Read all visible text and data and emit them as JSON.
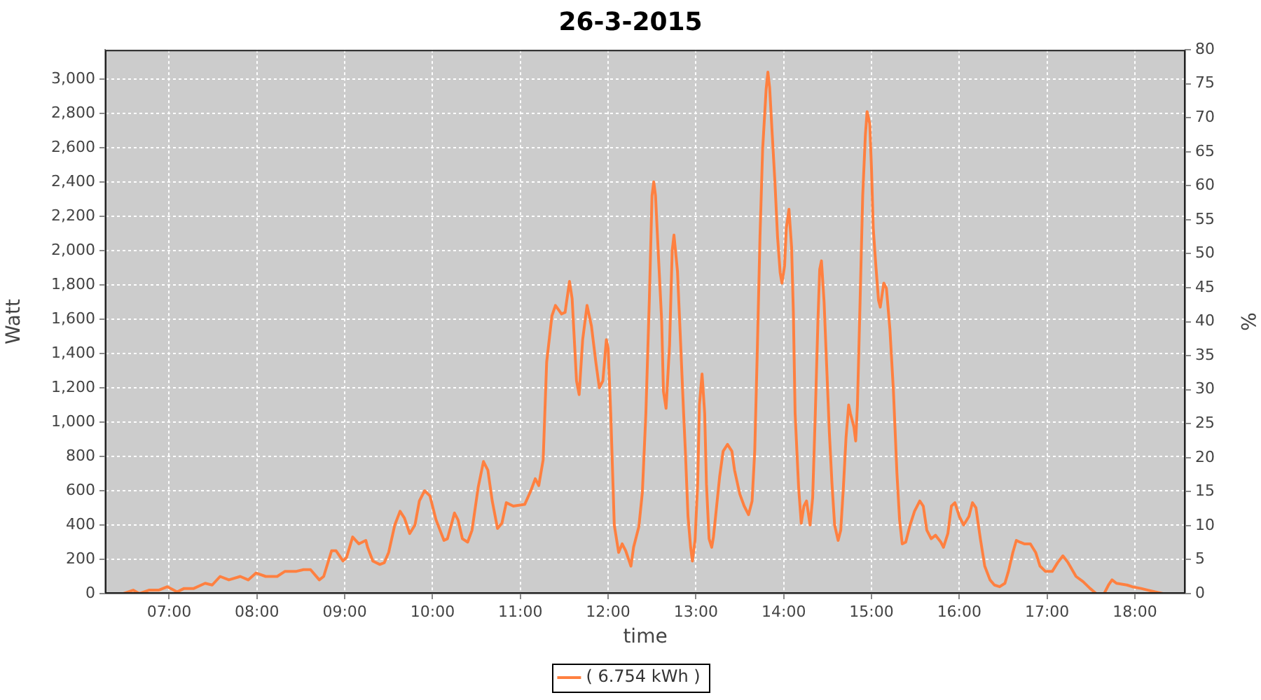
{
  "chart_data": {
    "type": "line",
    "title": "26-3-2015",
    "xlabel": "time",
    "ylabel": "Watt",
    "y2label": "%",
    "x": [
      6.48,
      6.59,
      6.66,
      6.77,
      6.88,
      6.98,
      7.09,
      7.17,
      7.28,
      7.41,
      7.49,
      7.58,
      7.68,
      7.81,
      7.9,
      7.99,
      8.1,
      8.23,
      8.32,
      8.45,
      8.53,
      8.61,
      8.71,
      8.76,
      8.85,
      8.9,
      8.98,
      9.02,
      9.09,
      9.16,
      9.24,
      9.26,
      9.32,
      9.4,
      9.45,
      9.5,
      9.57,
      9.63,
      9.68,
      9.74,
      9.8,
      9.85,
      9.91,
      9.97,
      10.04,
      10.13,
      10.17,
      10.25,
      10.29,
      10.34,
      10.4,
      10.45,
      10.52,
      10.58,
      10.63,
      10.68,
      10.74,
      10.79,
      10.84,
      10.92,
      11.05,
      11.12,
      11.17,
      11.21,
      11.26,
      11.3,
      11.36,
      11.4,
      11.47,
      11.51,
      11.56,
      11.59,
      11.64,
      11.67,
      11.71,
      11.76,
      11.81,
      11.86,
      11.9,
      11.94,
      11.98,
      12.0,
      12.03,
      12.07,
      12.12,
      12.16,
      12.2,
      12.26,
      12.29,
      12.35,
      12.39,
      12.43,
      12.47,
      12.5,
      12.52,
      12.54,
      12.57,
      12.61,
      12.63,
      12.66,
      12.7,
      12.73,
      12.75,
      12.79,
      12.82,
      12.86,
      12.88,
      12.91,
      12.94,
      12.96,
      12.99,
      13.02,
      13.04,
      13.07,
      13.1,
      13.12,
      13.15,
      13.18,
      13.2,
      13.23,
      13.27,
      13.31,
      13.36,
      13.41,
      13.44,
      13.5,
      13.55,
      13.6,
      13.64,
      13.67,
      13.7,
      13.73,
      13.76,
      13.8,
      13.82,
      13.84,
      13.87,
      13.9,
      13.93,
      13.96,
      13.98,
      14.01,
      14.03,
      14.06,
      14.09,
      14.11,
      14.13,
      14.17,
      14.2,
      14.23,
      14.26,
      14.3,
      14.33,
      14.36,
      14.39,
      14.41,
      14.43,
      14.46,
      14.49,
      14.52,
      14.55,
      14.58,
      14.62,
      14.65,
      14.68,
      14.71,
      14.74,
      14.76,
      14.8,
      14.82,
      14.84,
      14.87,
      14.9,
      14.93,
      14.95,
      14.98,
      15.0,
      15.02,
      15.05,
      15.08,
      15.1,
      15.14,
      15.17,
      15.21,
      15.25,
      15.29,
      15.32,
      15.35,
      15.39,
      15.44,
      15.49,
      15.55,
      15.59,
      15.63,
      15.68,
      15.73,
      15.79,
      15.82,
      15.87,
      15.91,
      15.95,
      16.0,
      16.05,
      16.11,
      16.15,
      16.19,
      16.24,
      16.29,
      16.35,
      16.4,
      16.46,
      16.52,
      16.56,
      16.61,
      16.65,
      16.69,
      16.74,
      16.81,
      16.87,
      16.92,
      16.98,
      17.06,
      17.12,
      17.18,
      17.24,
      17.33,
      17.41,
      17.49,
      17.56,
      17.65,
      17.7,
      17.74,
      17.79,
      17.91,
      17.97,
      18.07,
      18.15,
      18.23,
      18.32
    ],
    "series": [
      {
        "name": "( 6.754 kWh )",
        "color": "#ff8040",
        "values": [
          0,
          20,
          0,
          20,
          20,
          40,
          10,
          30,
          30,
          60,
          50,
          100,
          80,
          100,
          80,
          120,
          100,
          100,
          130,
          130,
          140,
          140,
          80,
          100,
          250,
          250,
          190,
          210,
          330,
          290,
          310,
          270,
          190,
          170,
          180,
          240,
          400,
          480,
          440,
          350,
          400,
          540,
          600,
          570,
          430,
          310,
          320,
          470,
          430,
          320,
          300,
          370,
          620,
          770,
          720,
          540,
          380,
          410,
          530,
          510,
          520,
          600,
          670,
          630,
          780,
          1350,
          1620,
          1680,
          1630,
          1640,
          1820,
          1720,
          1240,
          1160,
          1480,
          1680,
          1560,
          1350,
          1200,
          1240,
          1480,
          1430,
          1050,
          400,
          240,
          290,
          250,
          160,
          270,
          390,
          590,
          1050,
          1720,
          2320,
          2400,
          2320,
          2000,
          1590,
          1180,
          1080,
          1450,
          2000,
          2090,
          1880,
          1530,
          1050,
          830,
          450,
          270,
          190,
          310,
          640,
          1100,
          1280,
          1050,
          640,
          320,
          270,
          330,
          480,
          680,
          830,
          870,
          830,
          720,
          580,
          510,
          460,
          540,
          830,
          1430,
          2080,
          2590,
          2940,
          3040,
          2950,
          2670,
          2400,
          2080,
          1870,
          1810,
          1910,
          2130,
          2240,
          2020,
          1640,
          1050,
          620,
          410,
          510,
          540,
          400,
          560,
          1050,
          1590,
          1890,
          1940,
          1700,
          1320,
          940,
          640,
          400,
          310,
          370,
          620,
          910,
          1100,
          1050,
          970,
          890,
          1100,
          1700,
          2320,
          2670,
          2810,
          2740,
          2480,
          2130,
          1910,
          1710,
          1670,
          1810,
          1780,
          1540,
          1180,
          700,
          430,
          290,
          300,
          400,
          480,
          540,
          510,
          370,
          320,
          340,
          300,
          270,
          350,
          510,
          530,
          450,
          400,
          450,
          530,
          500,
          320,
          160,
          80,
          50,
          40,
          60,
          130,
          240,
          310,
          300,
          290,
          290,
          240,
          160,
          130,
          130,
          180,
          220,
          180,
          100,
          70,
          30,
          0,
          0,
          50,
          80,
          60,
          50,
          40,
          30,
          20,
          10,
          0
        ]
      }
    ],
    "xlim": [
      6.27,
      18.575
    ],
    "xticks": [
      {
        "value": 7,
        "label": "07:00"
      },
      {
        "value": 8,
        "label": "08:00"
      },
      {
        "value": 9,
        "label": "09:00"
      },
      {
        "value": 10,
        "label": "10:00"
      },
      {
        "value": 11,
        "label": "11:00"
      },
      {
        "value": 12,
        "label": "12:00"
      },
      {
        "value": 13,
        "label": "13:00"
      },
      {
        "value": 14,
        "label": "14:00"
      },
      {
        "value": 15,
        "label": "15:00"
      },
      {
        "value": 16,
        "label": "16:00"
      },
      {
        "value": 17,
        "label": "17:00"
      },
      {
        "value": 18,
        "label": "18:00"
      }
    ],
    "ylim": [
      0,
      3170
    ],
    "yticks": [
      0,
      200,
      400,
      600,
      800,
      {
        "value": 1000,
        "label": "1,000"
      },
      {
        "value": 1200,
        "label": "1,200"
      },
      {
        "value": 1400,
        "label": "1,400"
      },
      {
        "value": 1600,
        "label": "1,600"
      },
      {
        "value": 1800,
        "label": "1,800"
      },
      {
        "value": 2000,
        "label": "2,000"
      },
      {
        "value": 2200,
        "label": "2,200"
      },
      {
        "value": 2400,
        "label": "2,400"
      },
      {
        "value": 2600,
        "label": "2,600"
      },
      {
        "value": 2800,
        "label": "2,800"
      },
      {
        "value": 3000,
        "label": "3,000"
      }
    ],
    "y2lim": [
      0,
      80
    ],
    "y2ticks": [
      0,
      5,
      10,
      15,
      20,
      25,
      30,
      35,
      40,
      45,
      50,
      55,
      60,
      65,
      70,
      75,
      80
    ],
    "grid": true,
    "legend": "bottom"
  }
}
